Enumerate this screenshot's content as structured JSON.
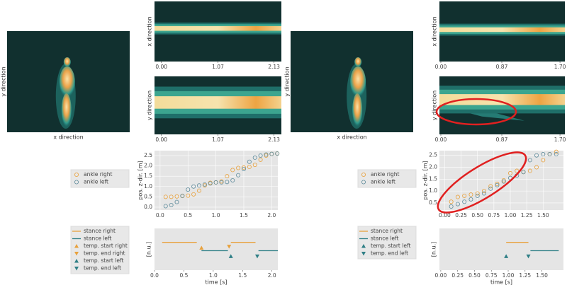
{
  "chart_data": [
    {
      "type": "image",
      "xlabel": "x direction",
      "ylabel": "y direction"
    },
    {
      "type": "heatmap",
      "ylabel": "x direction",
      "xlim": [
        -0.13,
        2.27
      ],
      "xticks": [
        {
          "value": 0,
          "label": "0.00"
        },
        1.07,
        2.13
      ]
    },
    {
      "type": "heatmap",
      "ylabel": "y direction",
      "xlim": [
        -0.13,
        2.27
      ],
      "xticks": [
        {
          "value": 0,
          "label": "0.00"
        },
        1.07,
        2.13
      ]
    },
    {
      "type": "scatter",
      "ylabel": "pos. z-dir. [m]",
      "xlim": [
        -0.1,
        2.11
      ],
      "ylim": [
        -0.14,
        2.74
      ],
      "xticks": [
        {
          "value": 0,
          "label": "0.0"
        },
        0.5,
        {
          "value": 1,
          "label": "1.0"
        },
        1.5,
        {
          "value": 2,
          "label": "2.0"
        }
      ],
      "yticks": [
        {
          "value": 0,
          "label": "0.0"
        },
        0.5,
        {
          "value": 1,
          "label": "1.0"
        },
        1.5,
        {
          "value": 2,
          "label": "2.0"
        },
        2.5
      ],
      "grid": true,
      "x": [
        0.1,
        0.2,
        0.3,
        0.4,
        0.5,
        0.6,
        0.7,
        0.8,
        0.9,
        1.0,
        1.1,
        1.2,
        1.3,
        1.4,
        1.5,
        1.6,
        1.7,
        1.8,
        1.9,
        2.0,
        2.1
      ],
      "series": [
        {
          "name": "ankle right",
          "color": "#e8a13c",
          "values": [
            0.5,
            0.5,
            0.52,
            0.54,
            0.56,
            0.62,
            0.8,
            1.05,
            1.18,
            1.2,
            1.25,
            1.5,
            1.8,
            1.9,
            1.92,
            1.95,
            2.05,
            2.3,
            2.5,
            2.58,
            2.6
          ]
        },
        {
          "name": "ankle left",
          "color": "#5f8c9c",
          "values": [
            0.05,
            0.1,
            0.25,
            0.55,
            0.85,
            1.0,
            1.05,
            1.1,
            1.15,
            1.2,
            1.2,
            1.22,
            1.3,
            1.55,
            1.85,
            2.2,
            2.4,
            2.5,
            2.55,
            2.58,
            2.6
          ]
        }
      ]
    },
    {
      "type": "event",
      "xlabel": "time [s]",
      "ylabel": "[n.u.]",
      "xlim": [
        0,
        2.1
      ],
      "ylim": [
        0,
        1.5
      ],
      "xticks": [
        {
          "value": 0,
          "label": "0.0"
        },
        0.5,
        {
          "value": 1,
          "label": "1.0"
        },
        1.5,
        {
          "value": 2,
          "label": "2.0"
        }
      ],
      "stances": [
        {
          "name": "stance right",
          "color": "#e8a13c",
          "level": 1.0,
          "start": [
            0.13,
            1.3
          ],
          "end": [
            0.72,
            1.72
          ]
        },
        {
          "name": "stance left",
          "color": "#2f7f86",
          "level": 0.7,
          "start": [
            0.8,
            1.77
          ],
          "end": [
            1.25,
            2.1
          ]
        }
      ],
      "events": [
        {
          "name": "temp. start right",
          "color": "#e8a13c",
          "marker": "up",
          "x": [
            0.8
          ],
          "level": [
            0.8
          ]
        },
        {
          "name": "temp. end right",
          "color": "#e8a13c",
          "marker": "down",
          "x": [
            1.27
          ],
          "level": [
            0.85
          ]
        },
        {
          "name": "temp. start left",
          "color": "#2f7f86",
          "marker": "up",
          "x": [
            1.3
          ],
          "level": [
            0.5
          ]
        },
        {
          "name": "temp. end left",
          "color": "#2f7f86",
          "marker": "down",
          "x": [
            1.75
          ],
          "level": [
            0.5
          ]
        }
      ]
    },
    {
      "type": "image",
      "xlabel": "x direction",
      "ylabel": "y direction"
    },
    {
      "type": "heatmap",
      "ylabel": "x direction",
      "xlim": [
        -0.02,
        1.77
      ],
      "xticks": [
        {
          "value": 0,
          "label": "0.00"
        },
        0.87,
        {
          "value": 1.7,
          "label": "1.70"
        }
      ]
    },
    {
      "type": "heatmap",
      "ylabel": "y direction",
      "xlim": [
        -0.02,
        1.77
      ],
      "xticks": [
        {
          "value": 0,
          "label": "0.00"
        },
        0.87,
        {
          "value": 1.7,
          "label": "1.70"
        }
      ]
    },
    {
      "type": "scatter",
      "ylabel": "pos. z-dir. [m]",
      "xlim": [
        -0.08,
        1.81
      ],
      "ylim": [
        0.2,
        2.7
      ],
      "xticks": [
        {
          "value": 0,
          "label": "0.00"
        },
        0.25,
        {
          "value": 0.5,
          "label": "0.50"
        },
        0.75,
        {
          "value": 1,
          "label": "1.00"
        },
        1.25,
        {
          "value": 1.5,
          "label": "1.50"
        }
      ],
      "yticks": [
        0.5,
        {
          "value": 1,
          "label": "1.0"
        },
        1.5,
        {
          "value": 2,
          "label": "2.0"
        },
        2.5
      ],
      "grid": true,
      "x": [
        0.1,
        0.2,
        0.3,
        0.4,
        0.5,
        0.6,
        0.7,
        0.8,
        0.9,
        1.0,
        1.1,
        1.2,
        1.3,
        1.4,
        1.5,
        1.6,
        1.7
      ],
      "series": [
        {
          "name": "ankle right",
          "color": "#e8a13c",
          "values": [
            0.55,
            0.75,
            0.8,
            0.85,
            0.9,
            1.0,
            1.2,
            1.3,
            1.45,
            1.75,
            1.85,
            1.8,
            1.85,
            2.0,
            2.3,
            2.55,
            2.65
          ]
        },
        {
          "name": "ankle left",
          "color": "#5f8c9c",
          "values": [
            0.35,
            0.45,
            0.55,
            0.65,
            0.8,
            0.9,
            1.1,
            1.25,
            1.4,
            1.55,
            1.65,
            1.8,
            2.3,
            2.5,
            2.55,
            2.55,
            2.55
          ]
        }
      ]
    },
    {
      "type": "event",
      "xlabel": "time [s]",
      "ylabel": "[n.u.]",
      "xlim": [
        -0.02,
        1.82
      ],
      "ylim": [
        0,
        1.5
      ],
      "xticks": [
        {
          "value": 0,
          "label": "0.00"
        },
        0.25,
        {
          "value": 0.5,
          "label": "0.50"
        },
        0.75,
        {
          "value": 1,
          "label": "1.00"
        },
        1.25,
        {
          "value": 1.5,
          "label": "1.50"
        }
      ],
      "stances": [
        {
          "name": "stance right",
          "color": "#e8a13c",
          "level": 1.0,
          "start": [
            0.97
          ],
          "end": [
            1.3
          ]
        },
        {
          "name": "stance left",
          "color": "#2f7f86",
          "level": 0.7,
          "start": [
            1.33
          ],
          "end": [
            1.75
          ]
        }
      ],
      "events": [
        {
          "name": "temp. start left",
          "color": "#2f7f86",
          "marker": "up",
          "x": [
            0.97
          ],
          "level": [
            0.5
          ]
        },
        {
          "name": "temp. end left",
          "color": "#2f7f86",
          "marker": "down",
          "x": [
            1.3
          ],
          "level": [
            0.5
          ]
        }
      ]
    }
  ]
}
